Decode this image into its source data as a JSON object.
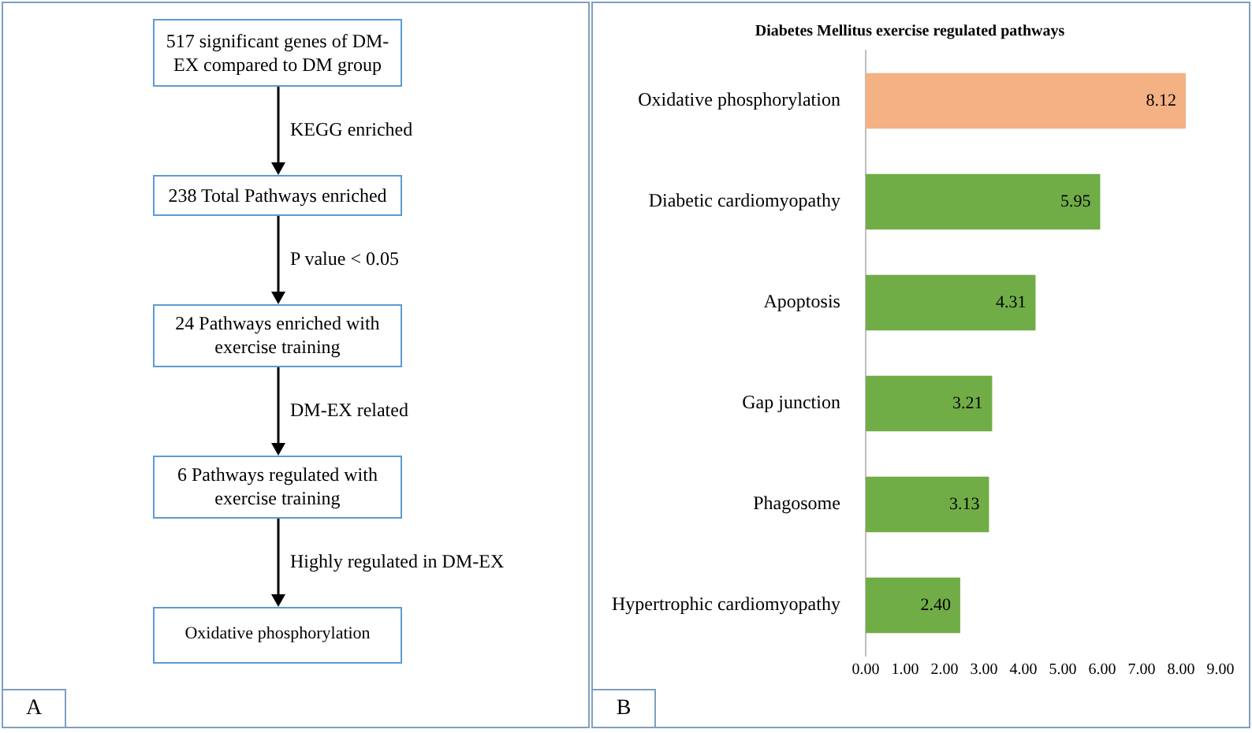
{
  "chart_data": [
    {
      "type": "other",
      "annotations": [
        "517 significant  genes of DM-EX compared to DM group",
        "KEGG enriched",
        "238 Total Pathways enriched",
        "P value  < 0.05",
        "24 Pathways enriched with exercise training",
        "DM-EX related",
        "6 Pathways regulated with exercise training",
        "Highly regulated in DM-EX",
        "Oxidative phosphorylation",
        "A"
      ]
    },
    {
      "type": "bar",
      "orientation": "horizontal",
      "title": "Diabetes Mellitus exercise regulated pathways",
      "categories": [
        "Oxidative phosphorylation",
        "Diabetic cardiomyopathy",
        "Apoptosis",
        "Gap junction",
        "Phagosome",
        "Hypertrophic cardiomyopathy"
      ],
      "values": [
        8.12,
        5.95,
        4.31,
        3.21,
        3.13,
        2.4
      ],
      "colors": [
        "#f4b183",
        "#70ad47",
        "#70ad47",
        "#70ad47",
        "#70ad47",
        "#70ad47"
      ],
      "value_labels": [
        "8.12",
        "5.95",
        "4.31",
        "3.21",
        "3.13",
        "2.40"
      ],
      "xlim": [
        0,
        9
      ],
      "xticks": [
        {
          "value": 0,
          "label": "0.00"
        },
        {
          "value": 1,
          "label": "1.00"
        },
        {
          "value": 2,
          "label": "2.00"
        },
        {
          "value": 3,
          "label": "3.00"
        },
        {
          "value": 4,
          "label": "4.00"
        },
        {
          "value": 5,
          "label": "5.00"
        },
        {
          "value": 6,
          "label": "6.00"
        },
        {
          "value": 7,
          "label": "7.00"
        },
        {
          "value": 8,
          "label": "8.00"
        },
        {
          "value": 9,
          "label": "9.00"
        }
      ],
      "grid": false,
      "legend": false,
      "annotations": [
        "B"
      ]
    }
  ]
}
